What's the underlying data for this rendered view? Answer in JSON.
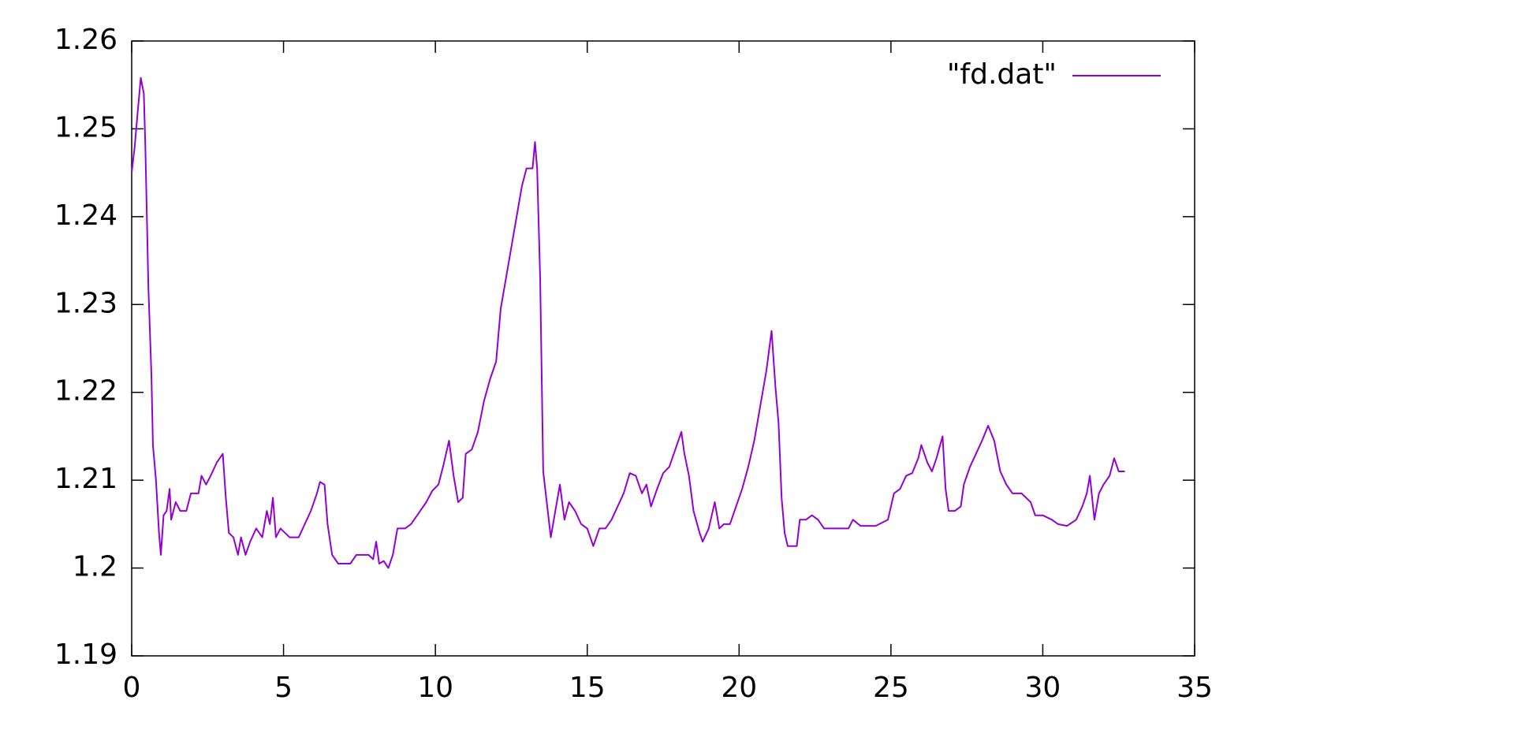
{
  "chart_data": {
    "type": "line",
    "x": [
      0,
      0.1,
      0.2,
      0.3,
      0.4,
      0.45,
      0.5,
      0.55,
      0.65,
      0.7,
      0.8,
      0.9,
      0.96,
      1.05,
      1.15,
      1.25,
      1.3,
      1.45,
      1.6,
      1.8,
      1.95,
      2.2,
      2.3,
      2.45,
      2.6,
      2.8,
      3.0,
      3.1,
      3.2,
      3.35,
      3.5,
      3.6,
      3.75,
      3.9,
      4.1,
      4.3,
      4.45,
      4.55,
      4.65,
      4.75,
      4.9,
      5.2,
      5.5,
      5.7,
      5.9,
      6.1,
      6.2,
      6.35,
      6.45,
      6.6,
      6.8,
      7.2,
      7.4,
      7.6,
      7.8,
      7.95,
      8.05,
      8.15,
      8.3,
      8.45,
      8.6,
      8.75,
      9.0,
      9.2,
      9.5,
      9.7,
      9.9,
      10.1,
      10.25,
      10.45,
      10.6,
      10.75,
      10.9,
      11.0,
      11.2,
      11.4,
      11.6,
      11.8,
      12.0,
      12.15,
      12.3,
      12.5,
      12.7,
      12.85,
      13.0,
      13.2,
      13.28,
      13.35,
      13.45,
      13.55,
      13.7,
      13.8,
      13.95,
      14.1,
      14.25,
      14.4,
      14.6,
      14.8,
      15.0,
      15.2,
      15.4,
      15.6,
      15.8,
      16.0,
      16.2,
      16.4,
      16.6,
      16.8,
      16.95,
      17.1,
      17.3,
      17.5,
      17.7,
      17.9,
      18.1,
      18.2,
      18.35,
      18.5,
      18.7,
      18.8,
      19.0,
      19.2,
      19.35,
      19.5,
      19.7,
      19.9,
      20.1,
      20.3,
      20.5,
      20.7,
      20.9,
      21.07,
      21.2,
      21.3,
      21.4,
      21.5,
      21.6,
      21.9,
      22.0,
      22.2,
      22.4,
      22.6,
      22.8,
      23.3,
      23.6,
      23.75,
      24.0,
      24.5,
      24.9,
      25.1,
      25.3,
      25.5,
      25.7,
      25.9,
      26.0,
      26.2,
      26.35,
      26.5,
      26.7,
      26.8,
      26.9,
      27.1,
      27.3,
      27.4,
      27.6,
      27.8,
      28.0,
      28.2,
      28.4,
      28.6,
      28.8,
      29.0,
      29.3,
      29.6,
      29.75,
      30.0,
      30.3,
      30.5,
      30.8,
      31.1,
      31.3,
      31.45,
      31.55,
      31.7,
      31.85,
      32.0,
      32.2,
      32.35,
      32.5,
      32.7
    ],
    "series": [
      {
        "name": "\"fd.dat\"",
        "color": "#9400d3",
        "values": [
          1.245,
          1.248,
          1.252,
          1.2558,
          1.254,
          1.248,
          1.24,
          1.232,
          1.222,
          1.214,
          1.21,
          1.204,
          1.2015,
          1.206,
          1.2065,
          1.209,
          1.2055,
          1.2075,
          1.2065,
          1.2065,
          1.2085,
          1.2085,
          1.2105,
          1.2095,
          1.2105,
          1.212,
          1.213,
          1.208,
          1.204,
          1.2035,
          1.2015,
          1.2035,
          1.2015,
          1.203,
          1.2045,
          1.2035,
          1.2065,
          1.205,
          1.208,
          1.2035,
          1.2045,
          1.2035,
          1.2035,
          1.205,
          1.2065,
          1.2085,
          1.2098,
          1.2095,
          1.205,
          1.2015,
          1.2005,
          1.2005,
          1.2015,
          1.2015,
          1.2015,
          1.201,
          1.203,
          1.2005,
          1.2008,
          1.2,
          1.2015,
          1.2045,
          1.2045,
          1.205,
          1.2065,
          1.2075,
          1.2088,
          1.2095,
          1.2115,
          1.2145,
          1.2105,
          1.2075,
          1.208,
          1.213,
          1.2135,
          1.2155,
          1.219,
          1.2215,
          1.2235,
          1.2295,
          1.2325,
          1.2365,
          1.2405,
          1.2435,
          1.2455,
          1.2455,
          1.2485,
          1.2455,
          1.233,
          1.211,
          1.2065,
          1.2035,
          1.2065,
          1.2095,
          1.2055,
          1.2075,
          1.2065,
          1.205,
          1.2045,
          1.2025,
          1.2045,
          1.2045,
          1.2055,
          1.207,
          1.2085,
          1.2108,
          1.2105,
          1.2085,
          1.2095,
          1.207,
          1.209,
          1.2108,
          1.2115,
          1.2135,
          1.2155,
          1.213,
          1.2105,
          1.2065,
          1.204,
          1.203,
          1.2045,
          1.2075,
          1.2045,
          1.205,
          1.205,
          1.207,
          1.209,
          1.2115,
          1.2145,
          1.2185,
          1.2225,
          1.227,
          1.2205,
          1.2165,
          1.208,
          1.204,
          1.2025,
          1.2025,
          1.2055,
          1.2055,
          1.206,
          1.2055,
          1.2045,
          1.2045,
          1.2045,
          1.2055,
          1.2048,
          1.2048,
          1.2055,
          1.2085,
          1.209,
          1.2105,
          1.2108,
          1.2125,
          1.214,
          1.212,
          1.211,
          1.2125,
          1.215,
          1.209,
          1.2065,
          1.2065,
          1.207,
          1.2095,
          1.2115,
          1.213,
          1.2145,
          1.2162,
          1.2145,
          1.211,
          1.2095,
          1.2085,
          1.2085,
          1.2075,
          1.206,
          1.206,
          1.2055,
          1.205,
          1.2048,
          1.2055,
          1.207,
          1.2085,
          1.2105,
          1.2055,
          1.2085,
          1.2095,
          1.2105,
          1.2125,
          1.211,
          1.211
        ]
      }
    ],
    "xlim": [
      0,
      35
    ],
    "xticks": [
      0,
      5,
      10,
      15,
      20,
      25,
      30,
      35
    ],
    "ylim": [
      1.19,
      1.26
    ],
    "yticks": [
      1.19,
      1.2,
      1.21,
      1.22,
      1.23,
      1.24,
      1.25,
      1.26
    ],
    "legend": "top-right",
    "grid": false
  }
}
